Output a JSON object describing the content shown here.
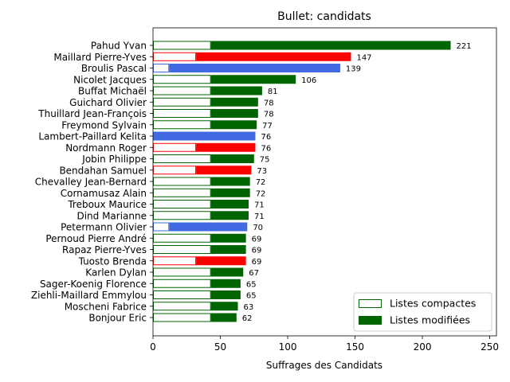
{
  "chart_data": {
    "type": "bar",
    "orientation": "horizontal",
    "title": "Bullet: candidats",
    "xlabel": "Suffrages des Candidats",
    "ylabel": "",
    "xlim": [
      0,
      255
    ],
    "x_ticks": [
      0,
      50,
      100,
      150,
      200,
      250
    ],
    "grid": false,
    "legend_position": "lower-right",
    "legend": [
      {
        "label": "Listes compactes",
        "style": "outline"
      },
      {
        "label": "Listes modifiées",
        "style": "filled"
      }
    ],
    "colors": {
      "green": "#006400",
      "red": "#ff0000",
      "blue": "#4169e1"
    },
    "candidates": [
      {
        "name": "Pahud Yvan",
        "total": 221,
        "compact": 43,
        "color": "green",
        "label": "221"
      },
      {
        "name": "Maillard Pierre-Yves",
        "total": 147,
        "compact": 32,
        "color": "red",
        "label": "147"
      },
      {
        "name": "Broulis Pascal",
        "total": 139,
        "compact": 12,
        "color": "blue",
        "label": "139"
      },
      {
        "name": "Nicolet Jacques",
        "total": 106,
        "compact": 43,
        "color": "green",
        "label": "106"
      },
      {
        "name": "Buffat Michaël",
        "total": 81,
        "compact": 43,
        "color": "green",
        "label": "81"
      },
      {
        "name": "Guichard Olivier",
        "total": 78,
        "compact": 43,
        "color": "green",
        "label": "78"
      },
      {
        "name": "Thuillard Jean-François",
        "total": 78,
        "compact": 43,
        "color": "green",
        "label": "78"
      },
      {
        "name": "Freymond Sylvain",
        "total": 77,
        "compact": 43,
        "color": "green",
        "label": "77"
      },
      {
        "name": "Lambert-Paillard Kelita",
        "total": 76,
        "compact": 0,
        "color": "blue",
        "label": "76"
      },
      {
        "name": "Nordmann Roger",
        "total": 76,
        "compact": 32,
        "color": "red",
        "label": "76"
      },
      {
        "name": "Jobin Philippe",
        "total": 75,
        "compact": 43,
        "color": "green",
        "label": "75"
      },
      {
        "name": "Bendahan Samuel",
        "total": 73,
        "compact": 32,
        "color": "red",
        "label": "73"
      },
      {
        "name": "Chevalley Jean-Bernard",
        "total": 72,
        "compact": 43,
        "color": "green",
        "label": "72"
      },
      {
        "name": "Cornamusaz Alain",
        "total": 72,
        "compact": 43,
        "color": "green",
        "label": "72"
      },
      {
        "name": "Treboux Maurice",
        "total": 71,
        "compact": 43,
        "color": "green",
        "label": "71"
      },
      {
        "name": "Dind Marianne",
        "total": 71,
        "compact": 43,
        "color": "green",
        "label": "71"
      },
      {
        "name": "Petermann Olivier",
        "total": 70,
        "compact": 12,
        "color": "blue",
        "label": "70"
      },
      {
        "name": "Pernoud Pierre André",
        "total": 69,
        "compact": 43,
        "color": "green",
        "label": "69"
      },
      {
        "name": "Rapaz Pierre-Yves",
        "total": 69,
        "compact": 43,
        "color": "green",
        "label": "69"
      },
      {
        "name": "Tuosto Brenda",
        "total": 69,
        "compact": 32,
        "color": "red",
        "label": "69"
      },
      {
        "name": "Karlen Dylan",
        "total": 67,
        "compact": 43,
        "color": "green",
        "label": "67"
      },
      {
        "name": "Sager-Koenig Florence",
        "total": 65,
        "compact": 43,
        "color": "green",
        "label": "65"
      },
      {
        "name": "Ziehli-Maillard Emmylou",
        "total": 65,
        "compact": 43,
        "color": "green",
        "label": "65"
      },
      {
        "name": "Moscheni Fabrice",
        "total": 63,
        "compact": 43,
        "color": "green",
        "label": "63"
      },
      {
        "name": "Bonjour Eric",
        "total": 62,
        "compact": 43,
        "color": "green",
        "label": "62"
      }
    ]
  }
}
